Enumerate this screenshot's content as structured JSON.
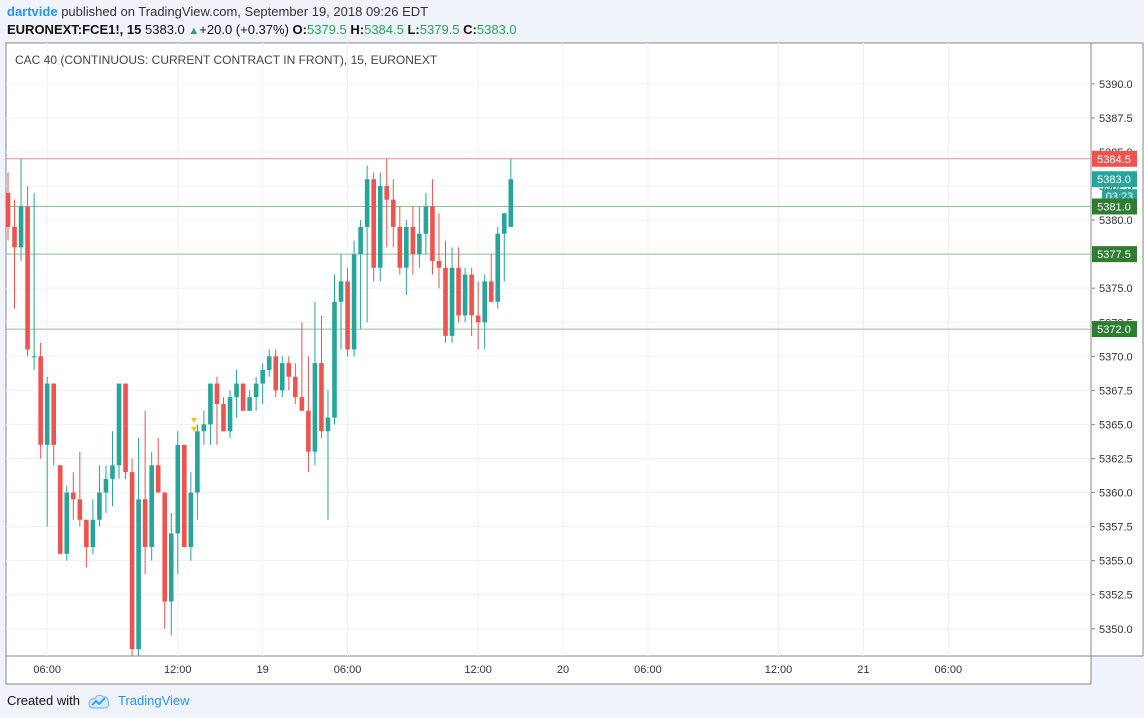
{
  "header": {
    "user": "dartvide",
    "published_text": "published on TradingView.com, September 19, 2018 09:26 EDT",
    "symbol": "EURONEXT:FCE1!, 15",
    "last": "5383.0",
    "change": "+20.0 (+0.37%)",
    "open_label": "O:",
    "open": "5379.5",
    "high_label": "H:",
    "high": "5384.5",
    "low_label": "L:",
    "low": "5379.5",
    "close_label": "C:",
    "close": "5383.0"
  },
  "footer": {
    "created_with": "Created with",
    "brand": "TradingView"
  },
  "colors": {
    "up": "#26a69a",
    "down": "#ef5350",
    "resistance": "#ef5350",
    "support": "#2e7d32",
    "accent": "#2196f3"
  },
  "chart_data": {
    "type": "candlestick",
    "title": "CAC 40 (CONTINUOUS: CURRENT CONTRACT IN FRONT), 15, EURONEXT",
    "ylim": [
      5348,
      5393
    ],
    "y_ticks": [
      "5350.0",
      "5352.5",
      "5355.0",
      "5357.5",
      "5360.0",
      "5362.5",
      "5365.0",
      "5367.5",
      "5370.0",
      "5372.5",
      "5375.0",
      "5377.5",
      "5380.0",
      "5382.5",
      "5385.0",
      "5387.5",
      "5390.0"
    ],
    "x_ticks": [
      {
        "label": "06:00",
        "bar": 6
      },
      {
        "label": "12:00",
        "bar": 26
      },
      {
        "label": "19",
        "bar": 39
      },
      {
        "label": "06:00",
        "bar": 52
      },
      {
        "label": "12:00",
        "bar": 72
      },
      {
        "label": "20",
        "bar": 85
      },
      {
        "label": "06:00",
        "bar": 98
      },
      {
        "label": "12:00",
        "bar": 118
      },
      {
        "label": "21",
        "bar": 131
      },
      {
        "label": "06:00",
        "bar": 144
      }
    ],
    "last_price": "5383.0",
    "countdown": "03:23",
    "horizontal_lines": [
      {
        "value": 5384.5,
        "label": "5384.5",
        "kind": "resistance"
      },
      {
        "value": 5381.0,
        "label": "5381.0",
        "kind": "support"
      },
      {
        "value": 5377.5,
        "label": "5377.5",
        "kind": "support"
      },
      {
        "value": 5372.0,
        "label": "5372.0",
        "kind": "support"
      }
    ],
    "candles": [
      [
        5382.0,
        5383.5,
        5378.5,
        5379.5
      ],
      [
        5379.5,
        5381.5,
        5373.5,
        5378.0
      ],
      [
        5378.0,
        5384.5,
        5377.0,
        5381.0
      ],
      [
        5381.0,
        5382.5,
        5370.0,
        5370.5
      ],
      [
        5370.0,
        5382.0,
        5369.0,
        5370.0
      ],
      [
        5370.0,
        5371.0,
        5362.5,
        5363.5
      ],
      [
        5363.5,
        5368.5,
        5357.5,
        5368.0
      ],
      [
        5368.0,
        5368.0,
        5362.0,
        5363.5
      ],
      [
        5362.0,
        5362.0,
        5355.5,
        5355.5
      ],
      [
        5355.5,
        5360.5,
        5355.0,
        5360.0
      ],
      [
        5360.0,
        5361.5,
        5358.0,
        5359.5
      ],
      [
        5359.5,
        5363.0,
        5357.5,
        5358.0
      ],
      [
        5358.0,
        5358.0,
        5354.5,
        5356.0
      ],
      [
        5356.0,
        5359.5,
        5355.5,
        5358.0
      ],
      [
        5358.0,
        5362.0,
        5357.5,
        5360.0
      ],
      [
        5360.0,
        5362.0,
        5358.5,
        5361.0
      ],
      [
        5361.0,
        5364.5,
        5359.0,
        5362.0
      ],
      [
        5362.0,
        5368.0,
        5361.0,
        5368.0
      ],
      [
        5368.0,
        5368.0,
        5361.0,
        5361.5
      ],
      [
        5361.5,
        5362.5,
        5348.0,
        5348.5
      ],
      [
        5348.5,
        5364.0,
        5348.0,
        5359.5
      ],
      [
        5359.5,
        5366.0,
        5354.0,
        5356.0
      ],
      [
        5356.0,
        5363.0,
        5355.0,
        5362.0
      ],
      [
        5362.0,
        5364.0,
        5360.0,
        5360.0
      ],
      [
        5360.0,
        5360.0,
        5350.0,
        5352.0
      ],
      [
        5352.0,
        5358.5,
        5349.5,
        5357.0
      ],
      [
        5357.0,
        5364.5,
        5354.0,
        5363.5
      ],
      [
        5363.5,
        5363.5,
        5356.0,
        5356.0
      ],
      [
        5356.0,
        5361.5,
        5355.0,
        5360.0
      ],
      [
        5360.0,
        5365.0,
        5358.0,
        5364.5
      ],
      [
        5364.5,
        5366.0,
        5363.5,
        5365.0
      ],
      [
        5365.0,
        5368.0,
        5363.5,
        5368.0
      ],
      [
        5368.0,
        5368.5,
        5363.5,
        5366.5
      ],
      [
        5366.5,
        5367.0,
        5364.5,
        5364.5
      ],
      [
        5364.5,
        5367.5,
        5364.0,
        5367.0
      ],
      [
        5367.0,
        5369.0,
        5365.5,
        5368.0
      ],
      [
        5368.0,
        5368.0,
        5366.0,
        5366.0
      ],
      [
        5366.0,
        5367.5,
        5366.0,
        5367.0
      ],
      [
        5367.0,
        5368.5,
        5366.0,
        5368.0
      ],
      [
        5368.0,
        5369.5,
        5366.5,
        5369.0
      ],
      [
        5369.0,
        5370.5,
        5368.5,
        5370.0
      ],
      [
        5370.0,
        5370.5,
        5367.0,
        5367.5
      ],
      [
        5367.5,
        5370.0,
        5367.0,
        5369.5
      ],
      [
        5369.5,
        5370.0,
        5367.5,
        5368.5
      ],
      [
        5368.5,
        5369.5,
        5366.5,
        5367.0
      ],
      [
        5367.0,
        5372.5,
        5366.0,
        5366.0
      ],
      [
        5366.0,
        5370.0,
        5361.5,
        5363.0
      ],
      [
        5363.0,
        5374.0,
        5362.0,
        5369.5
      ],
      [
        5369.5,
        5373.0,
        5364.0,
        5364.5
      ],
      [
        5364.5,
        5367.5,
        5358.0,
        5365.5
      ],
      [
        5365.5,
        5376.0,
        5365.0,
        5374.0
      ],
      [
        5374.0,
        5377.5,
        5370.5,
        5375.5
      ],
      [
        5375.5,
        5376.5,
        5370.0,
        5370.5
      ],
      [
        5370.5,
        5378.5,
        5370.0,
        5377.5
      ],
      [
        5377.5,
        5380.0,
        5372.0,
        5379.5
      ],
      [
        5379.5,
        5384.0,
        5372.5,
        5383.0
      ],
      [
        5383.0,
        5383.5,
        5375.5,
        5376.5
      ],
      [
        5376.5,
        5383.5,
        5375.5,
        5382.5
      ],
      [
        5382.5,
        5384.5,
        5378.0,
        5381.5
      ],
      [
        5381.5,
        5383.0,
        5378.0,
        5379.5
      ],
      [
        5379.5,
        5381.0,
        5376.0,
        5376.5
      ],
      [
        5376.5,
        5380.0,
        5374.5,
        5379.5
      ],
      [
        5379.5,
        5381.0,
        5376.0,
        5377.5
      ],
      [
        5377.5,
        5381.0,
        5376.5,
        5379.0
      ],
      [
        5379.0,
        5382.0,
        5377.5,
        5381.0
      ],
      [
        5381.0,
        5383.0,
        5376.0,
        5377.0
      ],
      [
        5377.0,
        5380.5,
        5375.0,
        5376.5
      ],
      [
        5376.5,
        5378.5,
        5371.0,
        5371.5
      ],
      [
        5371.5,
        5378.0,
        5371.0,
        5376.5
      ],
      [
        5376.5,
        5378.0,
        5372.5,
        5373.0
      ],
      [
        5373.0,
        5376.5,
        5372.5,
        5376.0
      ],
      [
        5376.0,
        5376.5,
        5371.5,
        5373.0
      ],
      [
        5373.0,
        5375.5,
        5370.5,
        5372.5
      ],
      [
        5372.5,
        5376.0,
        5370.5,
        5375.5
      ],
      [
        5375.5,
        5377.5,
        5374.0,
        5374.0
      ],
      [
        5374.0,
        5379.5,
        5373.5,
        5379.0
      ],
      [
        5379.0,
        5380.5,
        5375.5,
        5380.5
      ],
      [
        5379.5,
        5384.5,
        5379.5,
        5383.0
      ]
    ]
  }
}
